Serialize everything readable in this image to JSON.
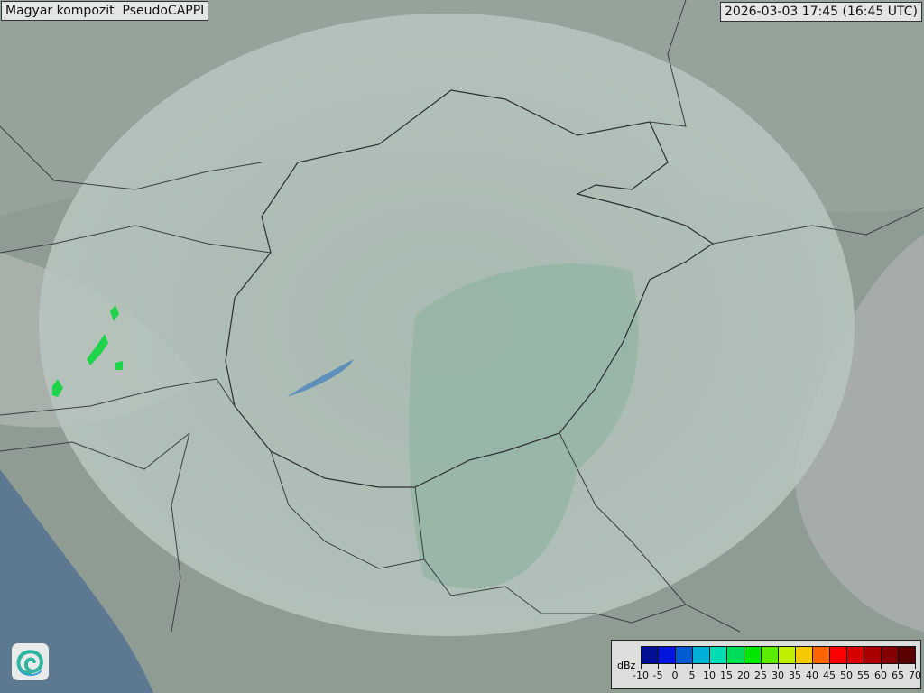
{
  "header": {
    "title": "Magyar kompozit  PseudoCAPPI",
    "timestamp": "2026-03-03 17:45 (16:45 UTC)"
  },
  "legend": {
    "unit": "dBz",
    "ticks": [
      "-10",
      "-5",
      "0",
      "5",
      "10",
      "15",
      "20",
      "25",
      "30",
      "35",
      "40",
      "45",
      "50",
      "55",
      "60",
      "65",
      "70"
    ],
    "colors": [
      "#000f96",
      "#0016dc",
      "#005ad2",
      "#00b0d8",
      "#00dcb4",
      "#00dc5a",
      "#00e600",
      "#5aeb00",
      "#c0f000",
      "#f5c800",
      "#ff6400",
      "#ff0000",
      "#d70000",
      "#aa0000",
      "#820000",
      "#5a0000"
    ]
  },
  "map": {
    "colors": {
      "land": "#8d9e95",
      "radar_coverage": "#a9bab2",
      "plain": "#93b3a3",
      "sea": "#5d7891",
      "echo": "#1fd44a"
    }
  },
  "logo": {
    "icon": "omsz-swirl-logo"
  }
}
